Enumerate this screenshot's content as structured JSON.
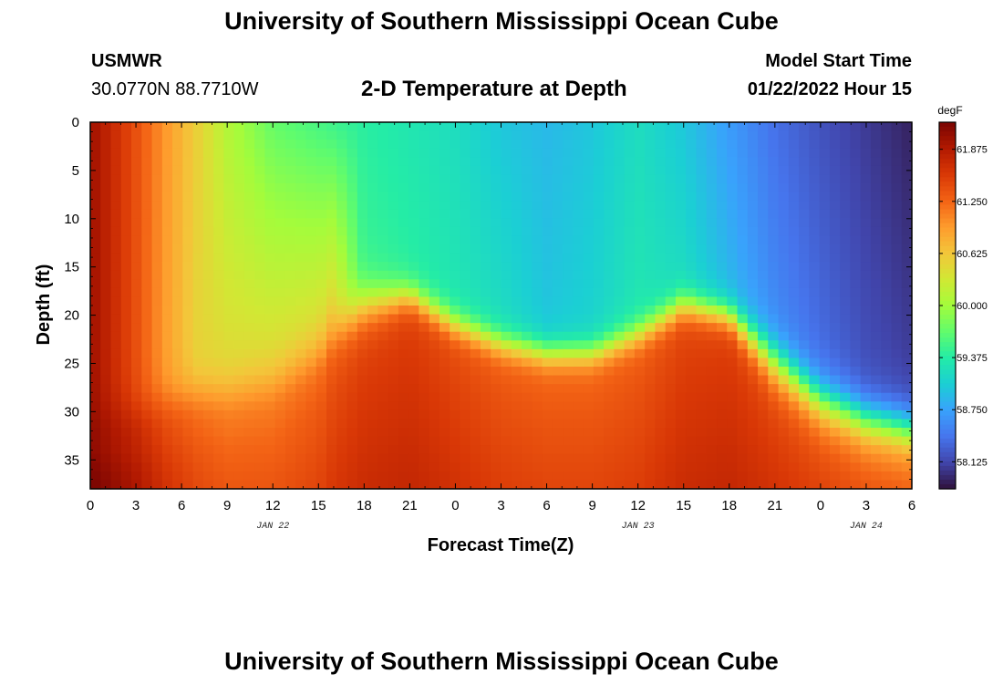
{
  "page": {
    "title": "University of Southern Mississippi Ocean Cube",
    "station": "USMWR",
    "coords": "30.0770N  88.7710W",
    "model_label": "Model Start Time",
    "model_time": "01/22/2022 Hour 15",
    "footer_title": "University of Southern Mississippi Ocean Cube"
  },
  "chart_data": {
    "type": "heatmap",
    "title": "2-D Temperature at Depth",
    "xlabel": "Forecast Time(Z)",
    "ylabel": "Depth (ft)",
    "colorbar_unit": "degF",
    "x_hours": [
      0,
      54
    ],
    "x_tick_labels": [
      "0",
      "3",
      "6",
      "9",
      "12",
      "15",
      "18",
      "21",
      "0",
      "3",
      "6",
      "9",
      "12",
      "15",
      "18",
      "21",
      "0",
      "3",
      "6"
    ],
    "date_labels": [
      {
        "hour": 12,
        "text": "JAN 22"
      },
      {
        "hour": 36,
        "text": "JAN 23"
      },
      {
        "hour": 51,
        "text": "JAN 24"
      }
    ],
    "ylim": [
      0,
      38
    ],
    "y_ticks": [
      0,
      5,
      10,
      15,
      20,
      25,
      30,
      35
    ],
    "value_range": [
      57.8,
      62.2
    ],
    "colorbar_ticks": [
      "61.875",
      "61.250",
      "60.625",
      "60.000",
      "59.375",
      "58.750",
      "58.125"
    ],
    "colorbar_tick_values": [
      61.875,
      61.25,
      60.625,
      60.0,
      59.375,
      58.75,
      58.125
    ],
    "colormap": [
      "#30123b",
      "#4145ab",
      "#4675ed",
      "#39a2fc",
      "#1bcfd4",
      "#24eca6",
      "#61fc6c",
      "#a4fc3b",
      "#d1e834",
      "#f3c63a",
      "#fe9b2d",
      "#f36315",
      "#d93806",
      "#b11901",
      "#7a0402"
    ],
    "profiles": [
      {
        "hour": 0,
        "top": 62.0,
        "mid": 62.0,
        "bot": 62.1,
        "thermocline": 30,
        "width": 3
      },
      {
        "hour": 3,
        "top": 61.4,
        "mid": 61.4,
        "bot": 61.8,
        "thermocline": 30,
        "width": 3
      },
      {
        "hour": 5,
        "top": 60.95,
        "mid": 60.9,
        "bot": 61.5,
        "thermocline": 29,
        "width": 3
      },
      {
        "hour": 7,
        "top": 60.55,
        "mid": 60.5,
        "bot": 61.3,
        "thermocline": 28,
        "width": 3
      },
      {
        "hour": 9,
        "top": 60.1,
        "mid": 60.45,
        "bot": 61.2,
        "thermocline": 28,
        "width": 3
      },
      {
        "hour": 12,
        "top": 59.7,
        "mid": 60.45,
        "bot": 61.2,
        "thermocline": 27,
        "width": 3
      },
      {
        "hour": 15,
        "top": 59.55,
        "mid": 60.45,
        "bot": 61.3,
        "thermocline": 24,
        "width": 3
      },
      {
        "hour": 16,
        "top": 59.5,
        "mid": 60.5,
        "bot": 61.4,
        "thermocline": 22,
        "width": 3
      },
      {
        "hour": 18,
        "top": 59.4,
        "mid": 59.5,
        "bot": 61.5,
        "thermocline": 19,
        "width": 3
      },
      {
        "hour": 21,
        "top": 59.3,
        "mid": 59.4,
        "bot": 61.55,
        "thermocline": 18,
        "width": 2
      },
      {
        "hour": 24,
        "top": 59.2,
        "mid": 59.3,
        "bot": 61.45,
        "thermocline": 21,
        "width": 2
      },
      {
        "hour": 27,
        "top": 59.0,
        "mid": 59.2,
        "bot": 61.35,
        "thermocline": 23,
        "width": 2
      },
      {
        "hour": 30,
        "top": 58.9,
        "mid": 59.0,
        "bot": 61.3,
        "thermocline": 24,
        "width": 2
      },
      {
        "hour": 33,
        "top": 59.0,
        "mid": 59.1,
        "bot": 61.3,
        "thermocline": 24,
        "width": 2
      },
      {
        "hour": 36,
        "top": 59.2,
        "mid": 59.3,
        "bot": 61.35,
        "thermocline": 22,
        "width": 2
      },
      {
        "hour": 39,
        "top": 59.0,
        "mid": 59.2,
        "bot": 61.5,
        "thermocline": 19,
        "width": 2
      },
      {
        "hour": 42,
        "top": 58.7,
        "mid": 58.9,
        "bot": 61.55,
        "thermocline": 20,
        "width": 2
      },
      {
        "hour": 45,
        "top": 58.4,
        "mid": 58.6,
        "bot": 61.45,
        "thermocline": 25,
        "width": 3
      },
      {
        "hour": 48,
        "top": 58.2,
        "mid": 58.4,
        "bot": 61.35,
        "thermocline": 29,
        "width": 3
      },
      {
        "hour": 51,
        "top": 58.05,
        "mid": 58.2,
        "bot": 61.25,
        "thermocline": 31,
        "width": 3
      },
      {
        "hour": 54,
        "top": 57.9,
        "mid": 58.1,
        "bot": 61.2,
        "thermocline": 32,
        "width": 3
      }
    ]
  }
}
